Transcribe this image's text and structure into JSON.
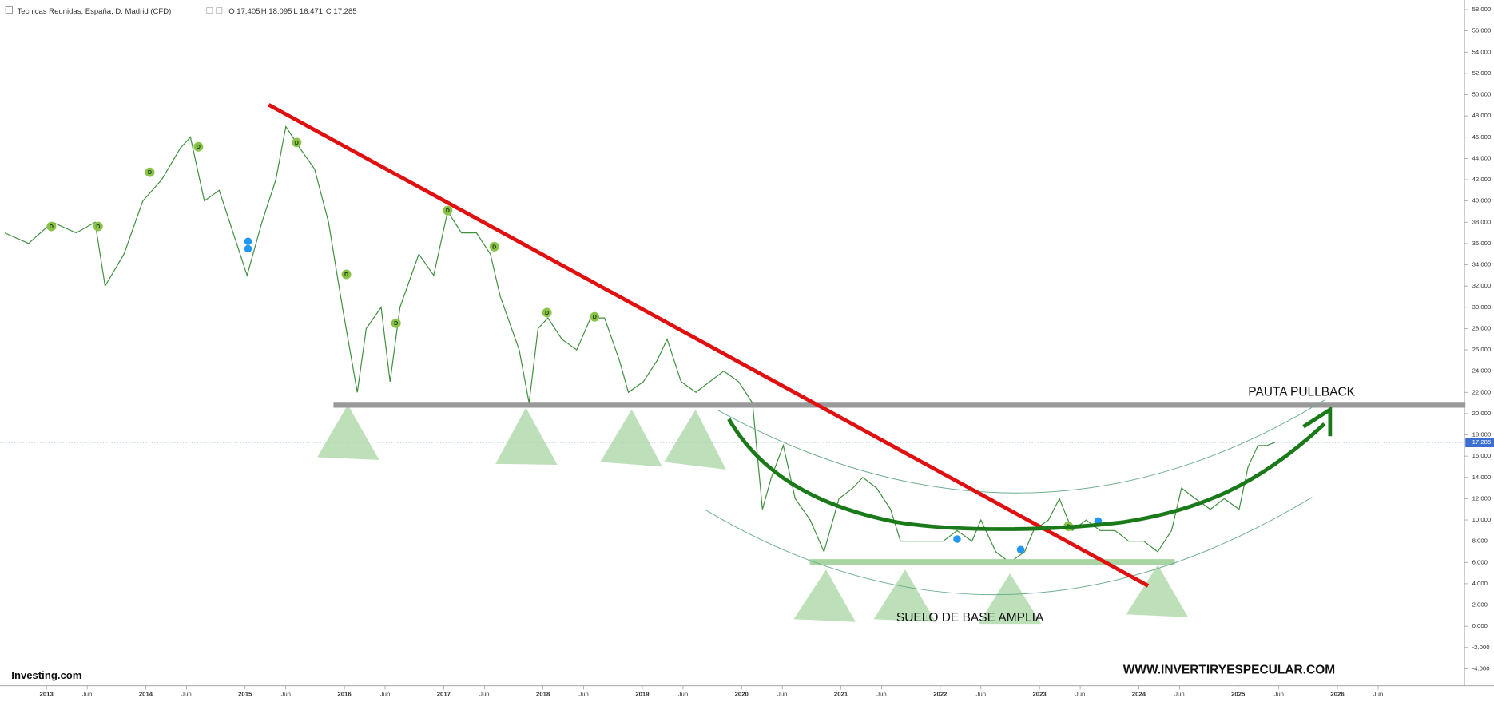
{
  "chart_data": {
    "type": "line",
    "title": "Tecnicas Reunidas, España, D, Madrid (CFD)",
    "ohlc_labels": [
      "O 17.405",
      "H 18.095",
      "L 16.471",
      "C 17.285"
    ],
    "annotations": [
      "PAUTA PULLBACK",
      "SUELO DE BASE AMPLIA",
      "WWW.INVERTIRYESPECULAR.COM"
    ],
    "brand": "Investing.com",
    "series": [
      {
        "color": "#3f8f3f",
        "x": [
          2012.58,
          2012.82,
          2013.06,
          2013.3,
          2013.49,
          2013.59,
          2013.78,
          2013.97,
          2014.16,
          2014.35,
          2014.45,
          2014.59,
          2014.74,
          2014.88,
          2015.02,
          2015.17,
          2015.31,
          2015.41,
          2015.55,
          2015.7,
          2015.84,
          2015.98,
          2016.13,
          2016.22,
          2016.37,
          2016.46,
          2016.56,
          2016.75,
          2016.9,
          2017.04,
          2017.18,
          2017.33,
          2017.47,
          2017.57,
          2017.76,
          2017.86,
          2017.95,
          2018.05,
          2018.19,
          2018.34,
          2018.48,
          2018.62,
          2018.77,
          2018.86,
          2019.01,
          2019.15,
          2019.25,
          2019.39,
          2019.54,
          2019.68,
          2019.82,
          2019.97,
          2020.11,
          2020.21,
          2020.3,
          2020.42,
          2020.54,
          2020.69,
          2020.83,
          2020.98,
          2021.12,
          2021.22,
          2021.36,
          2021.5,
          2021.6,
          2021.74,
          2021.89,
          2022.03,
          2022.17,
          2022.32,
          2022.41,
          2022.56,
          2022.7,
          2022.85,
          2022.94,
          2023.09,
          2023.2,
          2023.33,
          2023.47,
          2023.61,
          2023.76,
          2023.9,
          2024.05,
          2024.19,
          2024.33,
          2024.43,
          2024.57,
          2024.72,
          2024.86,
          2025.01,
          2025.1,
          2025.2,
          2025.29,
          2025.37
        ],
        "values": [
          37,
          36,
          38,
          37,
          38,
          32,
          35,
          40,
          42,
          45,
          46,
          40,
          41,
          37,
          33,
          38,
          42,
          47,
          45,
          43,
          38,
          30,
          22,
          28,
          30,
          23,
          30,
          35,
          33,
          39,
          37,
          37,
          35,
          31,
          26,
          21,
          28,
          29,
          27,
          26,
          29,
          29,
          25,
          22,
          23,
          25,
          27,
          23,
          22,
          23,
          24,
          23,
          21,
          11,
          14,
          17,
          12,
          10,
          7,
          12,
          13,
          14,
          13,
          11,
          8,
          8,
          8,
          8,
          9,
          8,
          10,
          7,
          6,
          7,
          9,
          10,
          12,
          9,
          10,
          9,
          9,
          8,
          8,
          7,
          9,
          13,
          12,
          11,
          12,
          11,
          15,
          17,
          17,
          17.285
        ]
      }
    ],
    "markers": [
      {
        "label": "D",
        "x": 2013.05,
        "y": 37.6
      },
      {
        "label": "D",
        "x": 2013.52,
        "y": 37.6
      },
      {
        "label": "D",
        "x": 2014.04,
        "y": 42.7
      },
      {
        "label": "D",
        "x": 2014.53,
        "y": 45.1
      },
      {
        "label": "D",
        "x": 2015.52,
        "y": 45.5
      },
      {
        "label": "D",
        "x": 2016.02,
        "y": 33.1
      },
      {
        "label": "D",
        "x": 2016.52,
        "y": 28.5
      },
      {
        "label": "D",
        "x": 2017.04,
        "y": 39.1
      },
      {
        "label": "D",
        "x": 2017.51,
        "y": 35.7
      },
      {
        "label": "D",
        "x": 2018.04,
        "y": 29.5
      },
      {
        "label": "D",
        "x": 2018.52,
        "y": 29.1
      },
      {
        "label": "D",
        "x": 2023.29,
        "y": 9.4
      }
    ],
    "events": [
      {
        "x": 2015.03,
        "y": 36.2
      },
      {
        "x": 2015.03,
        "y": 35.5
      },
      {
        "x": 2022.17,
        "y": 8.2
      },
      {
        "x": 2022.81,
        "y": 7.2
      },
      {
        "x": 2023.59,
        "y": 9.9
      }
    ],
    "xlim": [
      2012.58,
      2027.26
    ],
    "ylim": [
      -5.6,
      58.9
    ],
    "xticks": [
      2013,
      {
        "value": 2013.41,
        "label": "Jun"
      },
      2014,
      {
        "value": 2014.41,
        "label": "Jun"
      },
      2015,
      {
        "value": 2015.41,
        "label": "Jun"
      },
      2016,
      {
        "value": 2016.41,
        "label": "Jun"
      },
      2017,
      {
        "value": 2017.41,
        "label": "Jun"
      },
      2018,
      {
        "value": 2018.41,
        "label": "Jun"
      },
      2019,
      {
        "value": 2019.41,
        "label": "Jun"
      },
      2020,
      {
        "value": 2020.41,
        "label": "Jun"
      },
      2021,
      {
        "value": 2021.41,
        "label": "Jun"
      },
      2022,
      {
        "value": 2022.41,
        "label": "Jun"
      },
      2023,
      {
        "value": 2023.41,
        "label": "Jun"
      },
      2024,
      {
        "value": 2024.41,
        "label": "Jun"
      },
      2025,
      {
        "value": 2025.41,
        "label": "Jun"
      },
      2026,
      {
        "value": 2026.41,
        "label": "Jun"
      }
    ],
    "yticks": [
      {
        "value": 58,
        "label": "58.000"
      },
      {
        "value": 56,
        "label": "56.000"
      },
      {
        "value": 54,
        "label": "54.000"
      },
      {
        "value": 52,
        "label": "52.000"
      },
      {
        "value": 50,
        "label": "50.000"
      },
      {
        "value": 48,
        "label": "48.000"
      },
      {
        "value": 46,
        "label": "46.000"
      },
      {
        "value": 44,
        "label": "44.000"
      },
      {
        "value": 42,
        "label": "42.000"
      },
      {
        "value": 40,
        "label": "40.000"
      },
      {
        "value": 38,
        "label": "38.000"
      },
      {
        "value": 36,
        "label": "36.000"
      },
      {
        "value": 34,
        "label": "34.000"
      },
      {
        "value": 32,
        "label": "32.000"
      },
      {
        "value": 30,
        "label": "30.000"
      },
      {
        "value": 28,
        "label": "28.000"
      },
      {
        "value": 26,
        "label": "26.000"
      },
      {
        "value": 24,
        "label": "24.000"
      },
      {
        "value": 22,
        "label": "22.000"
      },
      {
        "value": 20,
        "label": "20.000"
      },
      {
        "value": 18,
        "label": "18.000"
      },
      {
        "value": 16,
        "label": "16.000"
      },
      {
        "value": 14,
        "label": "14.000"
      },
      {
        "value": 12,
        "label": "12.000"
      },
      {
        "value": 10,
        "label": "10.000"
      },
      {
        "value": 8,
        "label": "8.000"
      },
      {
        "value": 6,
        "label": "6.000"
      },
      {
        "value": 4,
        "label": "4.000"
      },
      {
        "value": 2,
        "label": "2.000"
      },
      {
        "value": 0,
        "label": "0.000"
      },
      {
        "value": -2,
        "label": "-2.000"
      },
      {
        "value": -4,
        "label": "-4.000"
      }
    ]
  }
}
